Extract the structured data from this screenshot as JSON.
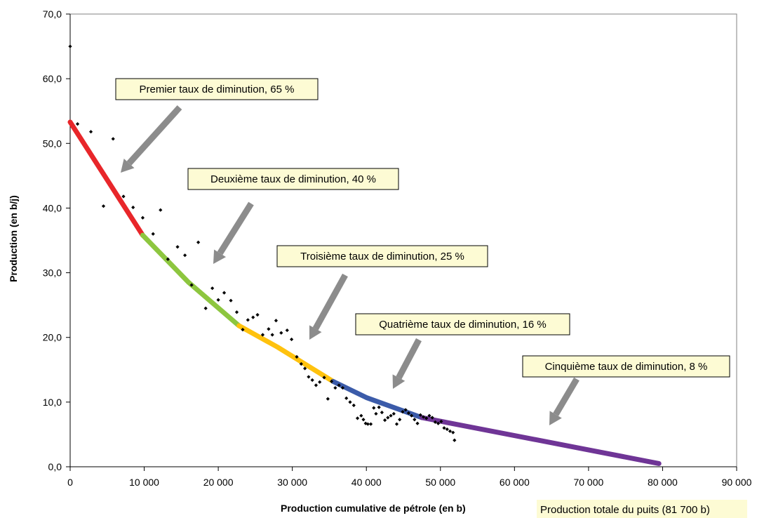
{
  "chart_data": {
    "type": "scatter",
    "xlabel": "Production cumulative de pétrole (en b)",
    "ylabel": "Production (en b/j)",
    "xlim": [
      0,
      90000
    ],
    "ylim": [
      0,
      70
    ],
    "x_ticks": [
      0,
      10000,
      20000,
      30000,
      40000,
      50000,
      60000,
      70000,
      80000,
      90000
    ],
    "x_tick_labels": [
      "0",
      "10 000",
      "20 000",
      "30 000",
      "40 000",
      "50 000",
      "60 000",
      "70 000",
      "80 000",
      "90 000"
    ],
    "y_ticks": [
      0,
      10,
      20,
      30,
      40,
      50,
      60,
      70
    ],
    "y_tick_labels": [
      "0,0",
      "10,0",
      "20,0",
      "30,0",
      "40,0",
      "50,0",
      "60,0",
      "70,0"
    ],
    "grid": false,
    "scatter_points": [
      [
        0,
        65.0
      ],
      [
        1000,
        53.0
      ],
      [
        2800,
        51.8
      ],
      [
        4500,
        40.3
      ],
      [
        5800,
        50.7
      ],
      [
        7200,
        41.8
      ],
      [
        8500,
        40.1
      ],
      [
        9800,
        38.5
      ],
      [
        11200,
        36.0
      ],
      [
        12200,
        39.7
      ],
      [
        13200,
        32.1
      ],
      [
        14500,
        34.0
      ],
      [
        15500,
        32.7
      ],
      [
        16400,
        28.1
      ],
      [
        17300,
        34.7
      ],
      [
        18300,
        24.5
      ],
      [
        19200,
        27.6
      ],
      [
        20000,
        25.8
      ],
      [
        20800,
        26.9
      ],
      [
        21700,
        25.7
      ],
      [
        22500,
        23.9
      ],
      [
        23300,
        21.2
      ],
      [
        24000,
        22.7
      ],
      [
        24700,
        23.1
      ],
      [
        25300,
        23.5
      ],
      [
        26000,
        20.4
      ],
      [
        26800,
        21.3
      ],
      [
        27300,
        20.4
      ],
      [
        27800,
        22.6
      ],
      [
        28500,
        20.7
      ],
      [
        29300,
        21.1
      ],
      [
        29900,
        19.7
      ],
      [
        30600,
        17.0
      ],
      [
        31200,
        15.9
      ],
      [
        31700,
        15.2
      ],
      [
        32200,
        13.9
      ],
      [
        32700,
        13.4
      ],
      [
        33200,
        12.6
      ],
      [
        33700,
        13.1
      ],
      [
        34300,
        13.8
      ],
      [
        34800,
        10.5
      ],
      [
        35300,
        13.2
      ],
      [
        35800,
        12.2
      ],
      [
        36300,
        12.6
      ],
      [
        36800,
        12.2
      ],
      [
        37300,
        10.6
      ],
      [
        37800,
        10.0
      ],
      [
        38300,
        9.5
      ],
      [
        38800,
        7.5
      ],
      [
        39300,
        7.9
      ],
      [
        39600,
        7.3
      ],
      [
        39900,
        6.7
      ],
      [
        40200,
        6.6
      ],
      [
        40600,
        6.6
      ],
      [
        41000,
        9.1
      ],
      [
        41300,
        8.2
      ],
      [
        41700,
        9.2
      ],
      [
        42100,
        8.4
      ],
      [
        42500,
        7.2
      ],
      [
        42900,
        7.6
      ],
      [
        43300,
        7.9
      ],
      [
        43700,
        8.2
      ],
      [
        44100,
        6.6
      ],
      [
        44500,
        7.3
      ],
      [
        44900,
        8.5
      ],
      [
        45300,
        8.8
      ],
      [
        45700,
        8.3
      ],
      [
        46100,
        7.9
      ],
      [
        46500,
        7.3
      ],
      [
        46900,
        6.7
      ],
      [
        47300,
        8.0
      ],
      [
        47700,
        7.7
      ],
      [
        48100,
        7.5
      ],
      [
        48500,
        7.9
      ],
      [
        48900,
        7.6
      ],
      [
        49300,
        6.9
      ],
      [
        49700,
        6.7
      ],
      [
        50100,
        7.0
      ],
      [
        50500,
        6.0
      ],
      [
        50900,
        5.8
      ],
      [
        51300,
        5.5
      ],
      [
        51700,
        5.3
      ],
      [
        51900,
        4.1
      ]
    ],
    "trend_segments": [
      {
        "color": "#e8262a",
        "points": [
          [
            0,
            53.3
          ],
          [
            9800,
            35.8
          ]
        ]
      },
      {
        "color": "#8dc63f",
        "points": [
          [
            9800,
            35.8
          ],
          [
            16000,
            28.5
          ],
          [
            22800,
            21.8
          ]
        ]
      },
      {
        "color": "#ffc20e",
        "points": [
          [
            22800,
            21.8
          ],
          [
            28000,
            18.5
          ],
          [
            35500,
            13.2
          ]
        ]
      },
      {
        "color": "#3b5ba9",
        "points": [
          [
            35500,
            13.2
          ],
          [
            40000,
            10.7
          ],
          [
            47500,
            7.6
          ]
        ]
      },
      {
        "color": "#6f3596",
        "points": [
          [
            47500,
            7.6
          ],
          [
            79500,
            0.5
          ]
        ]
      }
    ],
    "annotations": [
      {
        "text": "Premier taux de diminution, 65 %"
      },
      {
        "text": "Deuxième taux de diminution, 40 %"
      },
      {
        "text": "Troisième taux de diminution, 25 %"
      },
      {
        "text": "Quatrième taux de diminution, 16 %"
      },
      {
        "text": "Cinquième taux de diminution, 8 %"
      }
    ],
    "footer_note": "Production totale du puits (81 700 b)",
    "colors": {
      "arrow": "#8c8c8c",
      "callout_bg": "#fdfbd4",
      "points": "#000000"
    }
  }
}
